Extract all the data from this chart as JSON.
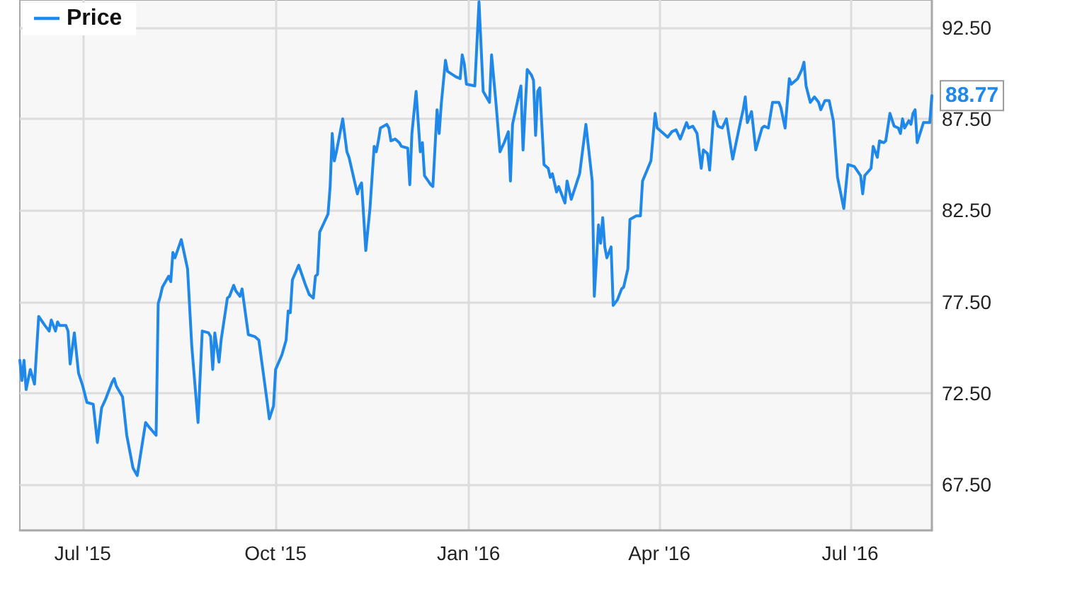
{
  "chart_data": {
    "type": "line",
    "x": [
      "2015-06-01",
      "2015-06-02",
      "2015-06-03",
      "2015-06-04",
      "2015-06-06",
      "2015-06-07",
      "2015-06-08",
      "2015-06-10",
      "2015-06-13",
      "2015-06-15",
      "2015-06-16",
      "2015-06-18",
      "2015-06-19",
      "2015-06-20",
      "2015-06-23",
      "2015-06-24",
      "2015-06-25",
      "2015-06-27",
      "2015-06-29",
      "2015-07-01",
      "2015-07-03",
      "2015-07-06",
      "2015-07-08",
      "2015-07-10",
      "2015-07-12",
      "2015-07-15",
      "2015-07-16",
      "2015-07-17",
      "2015-07-20",
      "2015-07-22",
      "2015-07-25",
      "2015-07-27",
      "2015-07-31",
      "2015-08-02",
      "2015-08-05",
      "2015-08-06",
      "2015-08-07",
      "2015-08-08",
      "2015-08-11",
      "2015-08-12",
      "2015-08-13",
      "2015-08-14",
      "2015-08-17",
      "2015-08-20",
      "2015-08-22",
      "2015-08-25",
      "2015-08-27",
      "2015-08-30",
      "2015-08-31",
      "2015-09-01",
      "2015-09-02",
      "2015-09-04",
      "2015-09-05",
      "2015-09-08",
      "2015-09-09",
      "2015-09-11",
      "2015-09-12",
      "2015-09-14",
      "2015-09-15",
      "2015-09-18",
      "2015-09-21",
      "2015-09-23",
      "2015-09-25",
      "2015-09-27",
      "2015-09-28",
      "2015-09-30",
      "2015-10-01",
      "2015-10-04",
      "2015-10-06",
      "2015-10-07",
      "2015-10-08",
      "2015-10-09",
      "2015-10-12",
      "2015-10-15",
      "2015-10-17",
      "2015-10-19",
      "2015-10-20",
      "2015-10-21",
      "2015-10-22",
      "2015-10-24",
      "2015-10-26",
      "2015-10-27",
      "2015-10-28",
      "2015-10-29",
      "2015-10-30",
      "2015-11-02",
      "2015-11-04",
      "2015-11-05",
      "2015-11-07",
      "2015-11-09",
      "2015-11-10",
      "2015-11-11",
      "2015-11-13",
      "2015-11-15",
      "2015-11-17",
      "2015-11-18",
      "2015-11-19",
      "2015-11-20",
      "2015-11-23",
      "2015-11-24",
      "2015-11-25",
      "2015-11-27",
      "2015-11-29",
      "2015-11-30",
      "2015-12-03",
      "2015-12-04",
      "2015-12-05",
      "2015-12-07",
      "2015-12-09",
      "2015-12-10",
      "2015-12-11",
      "2015-12-14",
      "2015-12-15",
      "2015-12-17",
      "2015-12-18",
      "2015-12-19",
      "2015-12-21",
      "2015-12-22",
      "2015-12-26",
      "2015-12-28",
      "2015-12-29",
      "2015-12-30",
      "2015-12-31",
      "2016-01-04",
      "2016-01-06",
      "2016-01-08",
      "2016-01-09",
      "2016-01-11",
      "2016-01-12",
      "2016-01-14",
      "2016-01-16",
      "2016-01-18",
      "2016-01-20",
      "2016-01-21",
      "2016-01-22",
      "2016-01-25",
      "2016-01-26",
      "2016-01-27",
      "2016-01-29",
      "2016-01-31",
      "2016-02-01",
      "2016-02-02",
      "2016-02-03",
      "2016-02-04",
      "2016-02-06",
      "2016-02-08",
      "2016-02-09",
      "2016-02-10",
      "2016-02-12",
      "2016-02-13",
      "2016-02-16",
      "2016-02-17",
      "2016-02-19",
      "2016-02-21",
      "2016-02-23",
      "2016-02-26",
      "2016-02-29",
      "2016-03-01",
      "2016-03-03",
      "2016-03-04",
      "2016-03-05",
      "2016-03-06",
      "2016-03-07",
      "2016-03-09",
      "2016-03-10",
      "2016-03-12",
      "2016-03-14",
      "2016-03-15",
      "2016-03-17",
      "2016-03-18",
      "2016-03-21",
      "2016-03-23",
      "2016-03-24",
      "2016-03-28",
      "2016-03-30",
      "2016-03-31",
      "2016-04-03",
      "2016-04-05",
      "2016-04-07",
      "2016-04-09",
      "2016-04-11",
      "2016-04-14",
      "2016-04-15",
      "2016-04-17",
      "2016-04-19",
      "2016-04-21",
      "2016-04-22",
      "2016-04-24",
      "2016-04-25",
      "2016-04-27",
      "2016-04-29",
      "2016-05-01",
      "2016-05-03",
      "2016-05-06",
      "2016-05-10",
      "2016-05-11",
      "2016-05-12",
      "2016-05-13",
      "2016-05-15",
      "2016-05-17",
      "2016-05-20",
      "2016-05-21",
      "2016-05-23",
      "2016-05-25",
      "2016-05-28",
      "2016-05-29",
      "2016-05-31",
      "2016-06-02",
      "2016-06-03",
      "2016-06-06",
      "2016-06-08",
      "2016-06-09",
      "2016-06-10",
      "2016-06-12",
      "2016-06-14",
      "2016-06-16",
      "2016-06-17",
      "2016-06-19",
      "2016-06-21",
      "2016-06-23",
      "2016-06-25",
      "2016-06-28",
      "2016-06-30",
      "2016-07-03",
      "2016-07-06",
      "2016-07-07",
      "2016-07-08",
      "2016-07-11",
      "2016-07-12",
      "2016-07-14",
      "2016-07-15",
      "2016-07-17",
      "2016-07-18",
      "2016-07-20",
      "2016-07-22",
      "2016-07-24",
      "2016-07-25",
      "2016-07-26",
      "2016-07-27",
      "2016-07-29",
      "2016-07-30",
      "2016-07-31",
      "2016-08-01",
      "2016-08-02",
      "2016-08-05",
      "2016-08-08",
      "2016-08-09"
    ],
    "series": [
      {
        "name": "Price",
        "color": "#1f88e8",
        "values": [
          74.3,
          73.2,
          74.3,
          72.7,
          73.8,
          73.4,
          73.0,
          76.7,
          76.2,
          75.9,
          76.5,
          75.9,
          76.4,
          76.2,
          76.2,
          75.9,
          74.1,
          75.8,
          73.6,
          72.9,
          72.0,
          71.9,
          69.8,
          71.7,
          72.2,
          73.1,
          73.3,
          72.9,
          72.3,
          70.2,
          68.4,
          68.0,
          70.9,
          70.6,
          70.2,
          77.4,
          77.8,
          78.3,
          78.9,
          78.6,
          80.2,
          79.9,
          80.9,
          79.3,
          75.1,
          70.9,
          75.9,
          75.8,
          75.6,
          73.8,
          75.8,
          74.2,
          75.4,
          77.7,
          77.8,
          78.4,
          78.1,
          77.8,
          78.2,
          75.7,
          75.6,
          75.4,
          73.7,
          72.0,
          71.1,
          71.8,
          73.8,
          74.6,
          75.4,
          77.0,
          76.9,
          78.7,
          79.5,
          78.5,
          77.9,
          77.7,
          78.9,
          79.0,
          81.3,
          81.8,
          82.3,
          83.8,
          86.7,
          85.2,
          85.7,
          87.5,
          85.7,
          85.4,
          84.4,
          83.4,
          83.8,
          84.0,
          80.3,
          82.6,
          86.0,
          85.7,
          86.3,
          87.0,
          87.2,
          87.0,
          86.3,
          86.4,
          86.2,
          86.0,
          85.9,
          83.9,
          86.7,
          89.0,
          85.7,
          86.2,
          84.4,
          83.9,
          83.8,
          88.0,
          86.7,
          88.3,
          90.7,
          90.1,
          89.8,
          89.7,
          91.0,
          90.5,
          89.4,
          89.3,
          93.9,
          89.0,
          88.8,
          88.4,
          91.0,
          88.5,
          85.7,
          86.2,
          86.8,
          84.1,
          87.2,
          88.8,
          89.3,
          85.8,
          90.2,
          89.9,
          89.6,
          86.6,
          89.0,
          89.2,
          85.0,
          84.8,
          84.3,
          84.5,
          83.5,
          83.8,
          82.9,
          84.1,
          83.1,
          83.8,
          84.5,
          87.2,
          84.1,
          77.8,
          81.7,
          80.7,
          82.1,
          80.5,
          79.9,
          80.5,
          77.3,
          77.6,
          78.2,
          78.3,
          79.3,
          82.0,
          82.2,
          82.2,
          84.1,
          85.2,
          87.8,
          87.0,
          86.7,
          86.5,
          86.8,
          86.9,
          86.4,
          87.3,
          87.0,
          87.1,
          86.7,
          84.8,
          85.8,
          85.6,
          84.7,
          87.9,
          87.1,
          87.0,
          87.5,
          85.3,
          87.5,
          88.0,
          88.7,
          87.3,
          87.9,
          85.8,
          87.0,
          87.1,
          87.0,
          88.4,
          88.4,
          88.1,
          87.0,
          89.7,
          89.4,
          89.7,
          90.2,
          90.6,
          89.3,
          88.4,
          88.7,
          88.4,
          88.0,
          88.5,
          88.5,
          87.4,
          84.3,
          82.6,
          85.0,
          84.9,
          84.4,
          83.4,
          84.4,
          84.8,
          86.0,
          85.4,
          86.3,
          86.2,
          86.3,
          87.8,
          87.1,
          87.0,
          86.7,
          87.5,
          87.0,
          87.4,
          87.2,
          87.8,
          88.0,
          86.2,
          87.3,
          87.3,
          88.77
        ]
      }
    ],
    "xlim": [
      "2015-06-01",
      "2016-08-09"
    ],
    "xticks": [
      {
        "value": "2015-07-01",
        "label": "Jul '15"
      },
      {
        "value": "2015-10-01",
        "label": "Oct '15"
      },
      {
        "value": "2016-01-01",
        "label": "Jan '16"
      },
      {
        "value": "2016-04-01",
        "label": "Apr '16"
      },
      {
        "value": "2016-07-01",
        "label": "Jul '16"
      }
    ],
    "ylim": [
      65,
      94
    ],
    "yticks": [
      {
        "value": 67.5,
        "label": "67.50"
      },
      {
        "value": 72.5,
        "label": "72.50"
      },
      {
        "value": 77.5,
        "label": "77.50"
      },
      {
        "value": 82.5,
        "label": "82.50"
      },
      {
        "value": 87.5,
        "label": "87.50"
      },
      {
        "value": 92.5,
        "label": "92.50"
      }
    ],
    "annotations": [
      {
        "text": "88.77",
        "x": "2016-08-09",
        "y": 88.77
      }
    ],
    "grid": true,
    "legend": "top left",
    "marker": "none",
    "line_style": "solid"
  }
}
